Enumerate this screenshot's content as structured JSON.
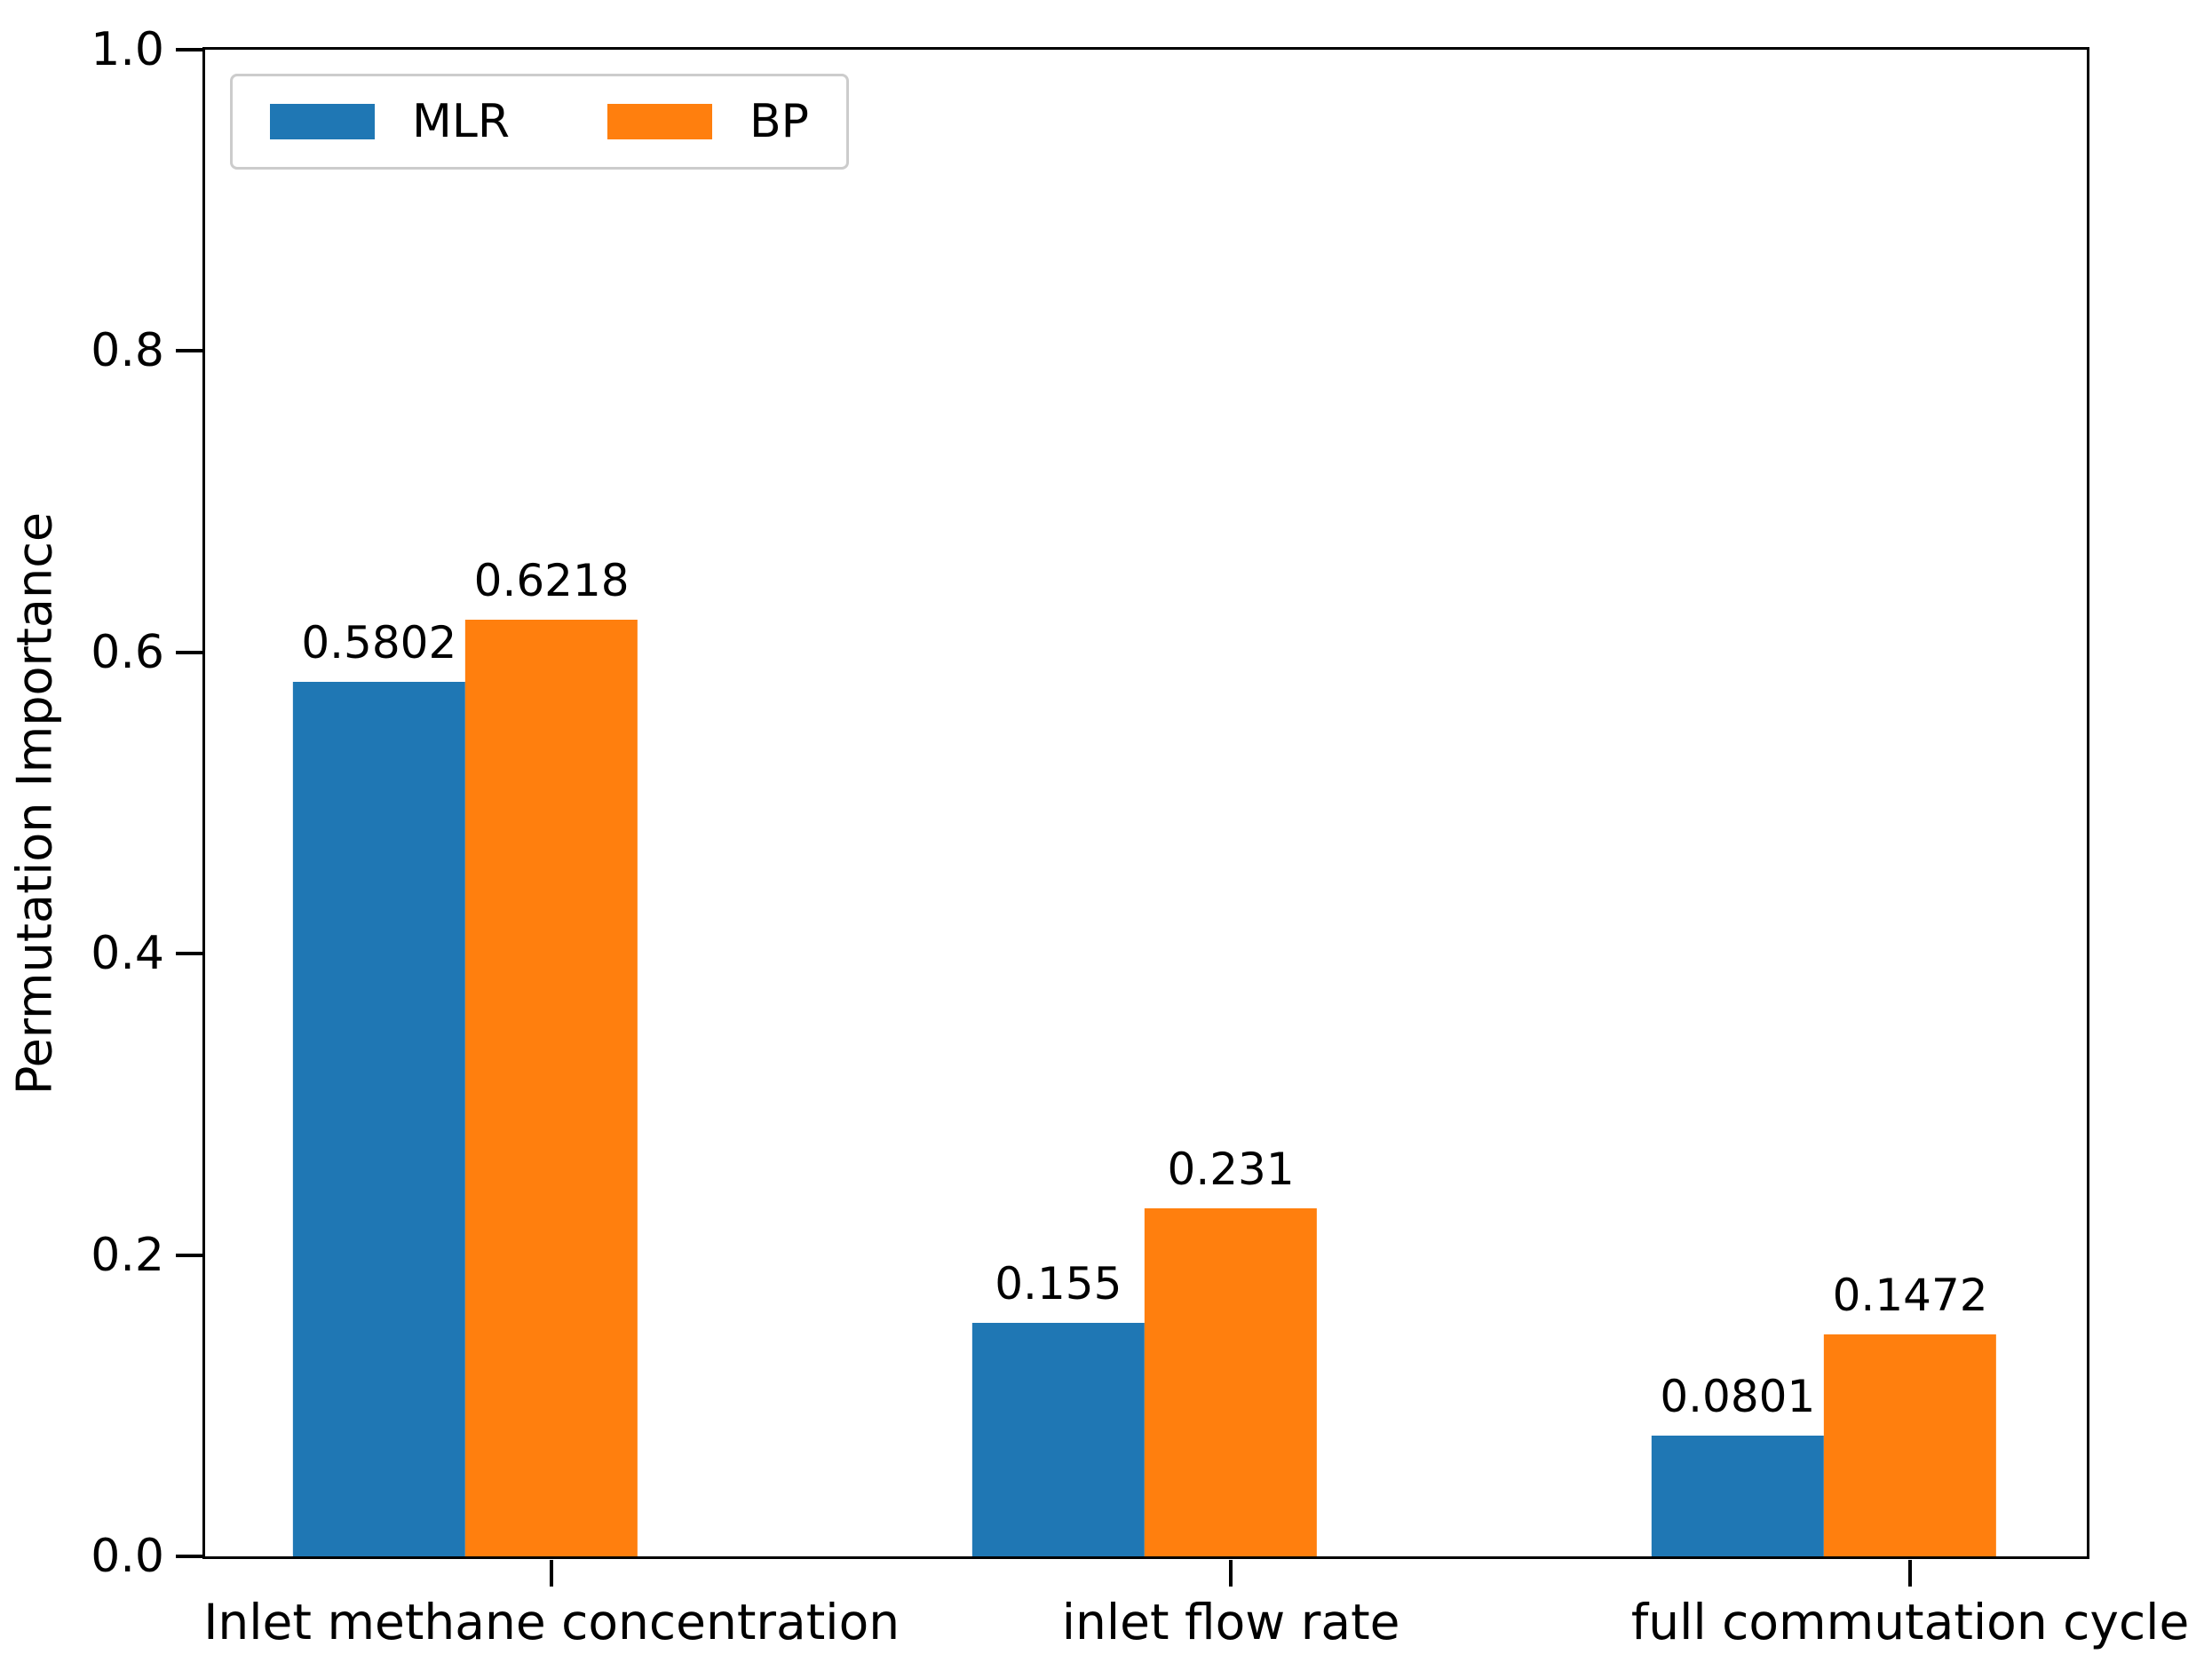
{
  "chart_data": {
    "type": "bar",
    "title": "",
    "xlabel": "",
    "ylabel": "Permutation Importance",
    "categories": [
      "Inlet methane concentration",
      "inlet flow rate",
      "full commutation cycle"
    ],
    "x": [
      0,
      1,
      2
    ],
    "series": [
      {
        "name": "MLR",
        "color": "#1f77b4",
        "offset": -0.254,
        "values": [
          0.5802,
          0.155,
          0.0801
        ],
        "labels": [
          "0.5802",
          "0.155",
          "0.0801"
        ]
      },
      {
        "name": "BP",
        "color": "#ff7f0e",
        "offset": 0,
        "values": [
          0.6218,
          0.231,
          0.1472
        ],
        "labels": [
          "0.6218",
          "0.231",
          "0.1472"
        ]
      }
    ],
    "bar_width": 0.254,
    "xlim": [
      -0.51,
      2.26
    ],
    "ylim": [
      0.0,
      1.0
    ],
    "yticks": [
      "0.0",
      "0.2",
      "0.4",
      "0.6",
      "0.8",
      "1.0"
    ],
    "grid": false,
    "legend": {
      "position": "upper-left",
      "entries": [
        "MLR",
        "BP"
      ]
    },
    "axis_color": "#000000",
    "background_color": "#ffffff"
  }
}
